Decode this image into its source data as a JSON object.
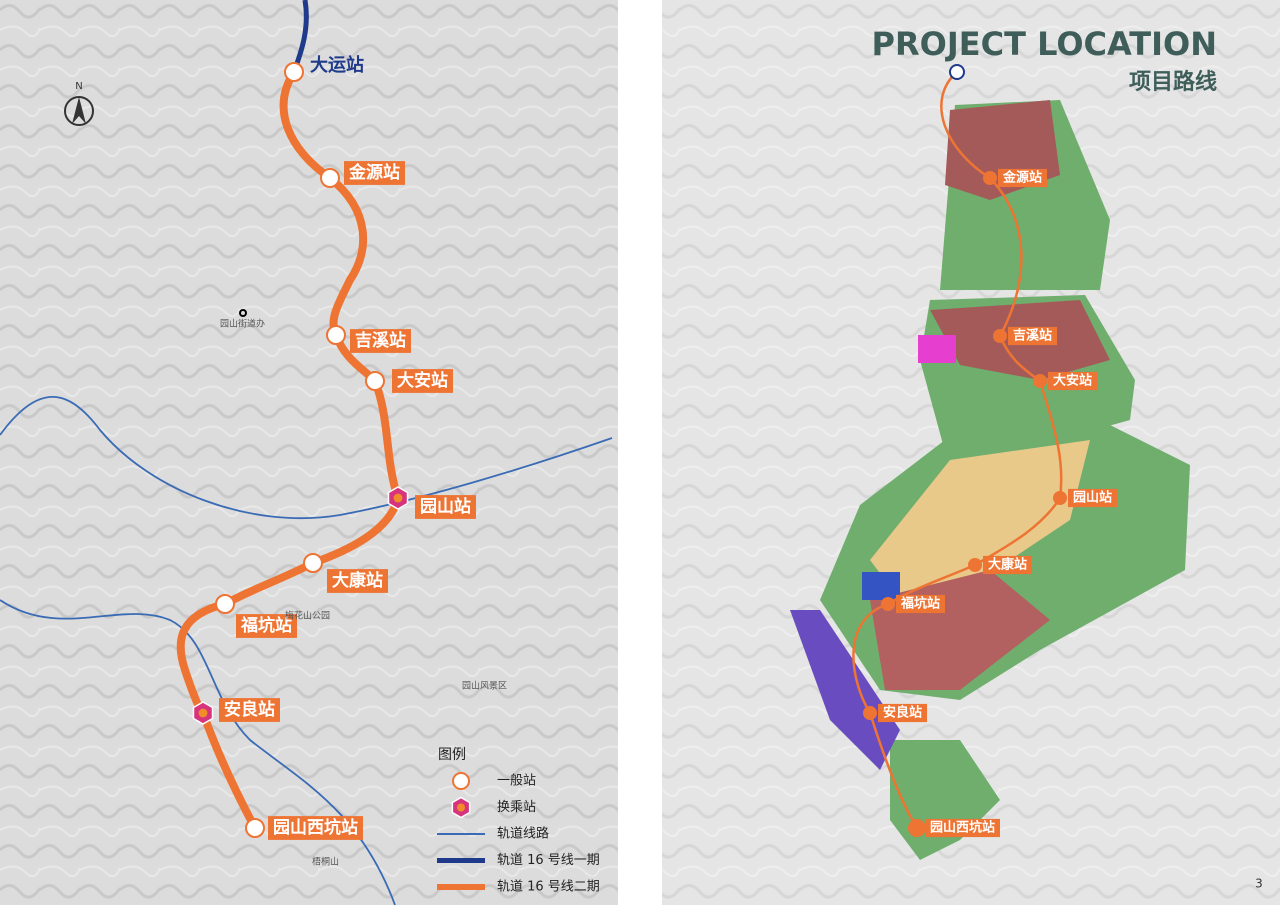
{
  "left_map": {
    "stations": [
      "大运站",
      "金源站",
      "吉溪站",
      "大安站",
      "园山站",
      "大康站",
      "福坑站",
      "安良站",
      "园山西坑站"
    ],
    "place_labels": [
      "园山街道办",
      "梅花山公园",
      "园山风景区",
      "梧桐山"
    ],
    "legend": {
      "title": "图例",
      "items": [
        "一般站",
        "换乘站",
        "轨道线路",
        "轨道 16 号线一期",
        "轨道 16 号线二期"
      ]
    }
  },
  "right_panel": {
    "title": "PROJECT LOCATION",
    "subtitle": "项目路线",
    "page_number": "3"
  }
}
